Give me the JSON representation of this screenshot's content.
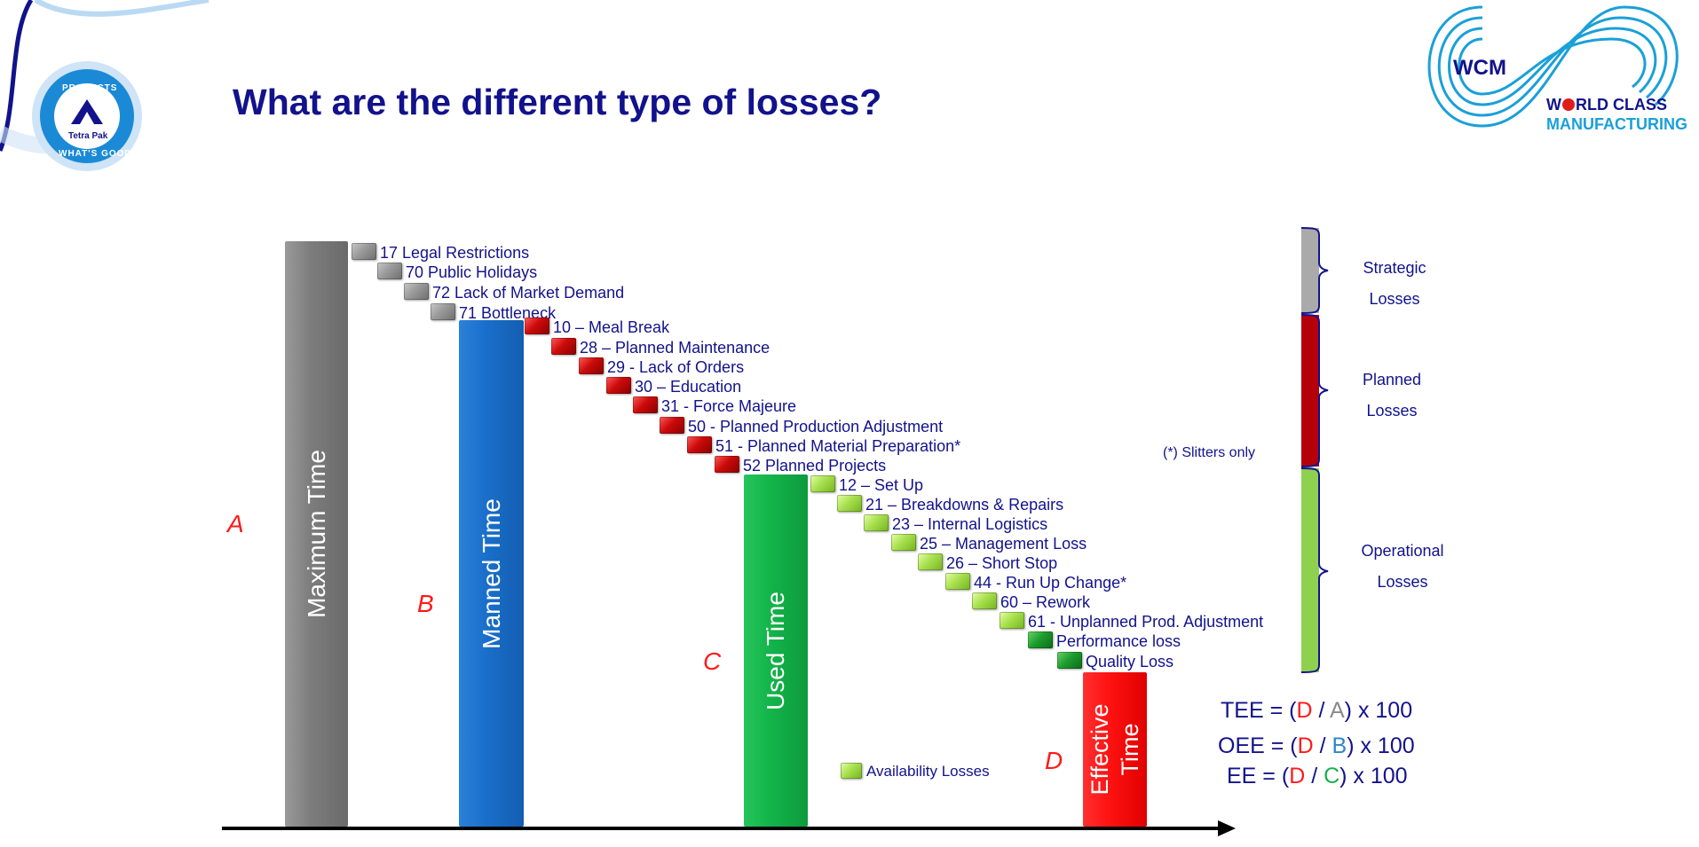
{
  "title": "What are the different type of losses?",
  "logos": {
    "tetra_pak": {
      "top_arc": "PROTECTS",
      "brand": "Tetra Pak",
      "bottom_arc": "WHAT'S GOOD"
    },
    "wcm": {
      "mark": "WCM",
      "line1_prefix": "W",
      "line1_rest": "RLD CLASS",
      "line2": "MANUFACTURING"
    }
  },
  "bars": [
    {
      "letter": "A",
      "label": "Maximum Time",
      "color": "#808080"
    },
    {
      "letter": "B",
      "label": "Manned Time",
      "color": "#1a6fcc"
    },
    {
      "letter": "C",
      "label": "Used Time",
      "color": "#13b54a"
    },
    {
      "letter": "D",
      "label_line1": "Effective",
      "label_line2": "Time",
      "color": "#ff1212"
    }
  ],
  "losses": [
    {
      "label": "17 Legal Restrictions",
      "category": "strategic"
    },
    {
      "label": "70 Public Holidays",
      "category": "strategic"
    },
    {
      "label": "72 Lack of Market Demand",
      "category": "strategic"
    },
    {
      "label": "71  Bottleneck",
      "category": "strategic"
    },
    {
      "label": "10 – Meal Break",
      "category": "planned"
    },
    {
      "label": "28 – Planned Maintenance",
      "category": "planned"
    },
    {
      "label": "29 - Lack of Orders",
      "category": "planned"
    },
    {
      "label": "30 – Education",
      "category": "planned"
    },
    {
      "label": "31 - Force Majeure",
      "category": "planned"
    },
    {
      "label": "50 - Planned Production Adjustment",
      "category": "planned"
    },
    {
      "label": "51 - Planned Material Preparation*",
      "category": "planned"
    },
    {
      "label": "52 Planned Projects",
      "category": "planned"
    },
    {
      "label": "12 – Set Up",
      "category": "availability"
    },
    {
      "label": "21 – Breakdowns & Repairs",
      "category": "availability"
    },
    {
      "label": "23 – Internal Logistics",
      "category": "availability"
    },
    {
      "label": "25 – Management Loss",
      "category": "availability"
    },
    {
      "label": "26 – Short Stop",
      "category": "availability"
    },
    {
      "label": "44 - Run Up Change*",
      "category": "availability"
    },
    {
      "label": "60 – Rework",
      "category": "availability"
    },
    {
      "label": "61 -  Unplanned Prod. Adjustment",
      "category": "availability"
    },
    {
      "label": "Performance loss",
      "category": "performance"
    },
    {
      "label": "Quality Loss",
      "category": "quality"
    }
  ],
  "legend": {
    "availability_label": "Availability Losses"
  },
  "note": "(*) Slitters only",
  "brackets": [
    {
      "line1": "Strategic",
      "line2": "Losses",
      "color": "#aaaaaa"
    },
    {
      "line1": "Planned",
      "line2": "Losses",
      "color": "#b5000a"
    },
    {
      "line1": "Operational",
      "line2": "Losses",
      "color": "#8fd14f"
    }
  ],
  "formulas": [
    {
      "name": "TEE",
      "num": "D",
      "den": "A"
    },
    {
      "name": "OEE",
      "num": "D",
      "den": "B"
    },
    {
      "name": "EE",
      "num": "D",
      "den": "C"
    }
  ],
  "formula_parts": {
    "eq": " = (",
    "slash": " / ",
    "tail": ") x 100"
  },
  "colors": {
    "title": "#12128c",
    "text": "#12128c",
    "letters": "#ff1a1a",
    "strategic": "#8c8c8c",
    "planned": "#cc0a0a",
    "availability": "#a8e04e",
    "performance_quality": "#1d9e2e"
  }
}
